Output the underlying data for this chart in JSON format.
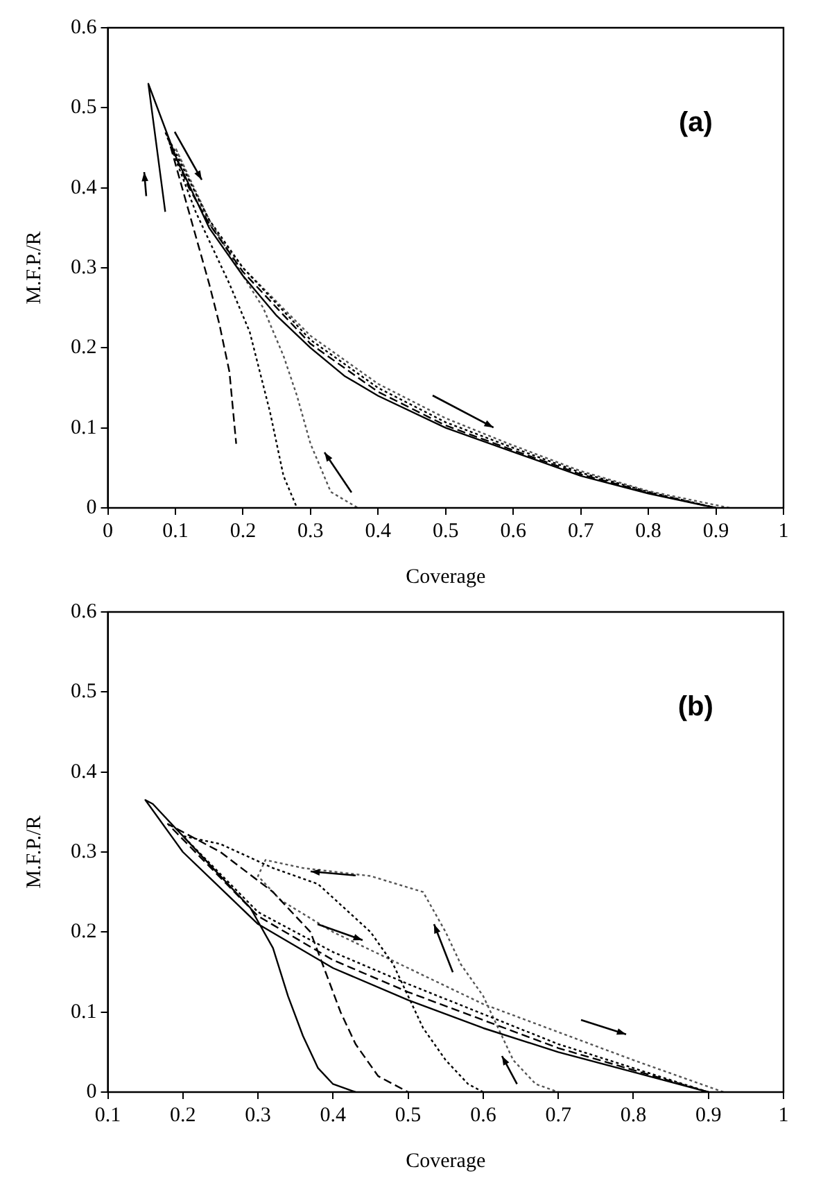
{
  "chart_data": [
    {
      "type": "line",
      "xlabel": "Coverage",
      "ylabel": "M.F.P./R",
      "annotations": [
        "(a)"
      ],
      "xlim": [
        0,
        1
      ],
      "ylim": [
        0,
        0.6
      ],
      "xticks": [
        0,
        0.1,
        0.2,
        0.3,
        0.4,
        0.5,
        0.6,
        0.7,
        0.8,
        0.9,
        1
      ],
      "yticks": [
        0,
        0.1,
        0.2,
        0.3,
        0.4,
        0.5,
        0.6
      ],
      "grid": false,
      "legend": false,
      "marker": "none",
      "series": [
        {
          "color": "#000000",
          "line_style": "solid",
          "x": [
            0.085,
            0.06,
            0.1,
            0.15,
            0.2,
            0.25,
            0.3,
            0.35,
            0.4,
            0.5,
            0.6,
            0.7,
            0.8,
            0.9
          ],
          "values": [
            0.37,
            0.53,
            0.44,
            0.35,
            0.29,
            0.24,
            0.2,
            0.165,
            0.14,
            0.1,
            0.07,
            0.04,
            0.018,
            0
          ]
        },
        {
          "color": "#000000",
          "line_style": "dashed",
          "x": [
            0.9,
            0.8,
            0.7,
            0.6,
            0.5,
            0.4,
            0.3,
            0.2,
            0.15,
            0.12,
            0.09,
            0.12,
            0.15,
            0.165,
            0.18,
            0.19
          ],
          "values": [
            0,
            0.019,
            0.042,
            0.072,
            0.103,
            0.145,
            0.205,
            0.295,
            0.355,
            0.4,
            0.46,
            0.37,
            0.28,
            0.23,
            0.17,
            0.08
          ]
        },
        {
          "color": "#000000",
          "line_style": "dotted",
          "x": [
            0.9,
            0.8,
            0.7,
            0.6,
            0.5,
            0.4,
            0.3,
            0.2,
            0.15,
            0.12,
            0.085,
            0.13,
            0.18,
            0.21,
            0.24,
            0.26,
            0.28
          ],
          "values": [
            0,
            0.02,
            0.044,
            0.075,
            0.107,
            0.15,
            0.21,
            0.3,
            0.36,
            0.41,
            0.47,
            0.37,
            0.28,
            0.22,
            0.12,
            0.04,
            0
          ]
        },
        {
          "color": "#555555",
          "line_style": "dotted",
          "x": [
            0.92,
            0.8,
            0.7,
            0.6,
            0.5,
            0.4,
            0.3,
            0.2,
            0.15,
            0.1,
            0.15,
            0.2,
            0.23,
            0.26,
            0.28,
            0.3,
            0.33,
            0.37
          ],
          "values": [
            0,
            0.021,
            0.046,
            0.078,
            0.112,
            0.155,
            0.215,
            0.3,
            0.355,
            0.45,
            0.36,
            0.29,
            0.25,
            0.19,
            0.14,
            0.08,
            0.02,
            0
          ]
        }
      ]
    },
    {
      "type": "line",
      "xlabel": "Coverage",
      "ylabel": "M.F.P./R",
      "annotations": [
        "(b)"
      ],
      "xlim": [
        0.1,
        1
      ],
      "ylim": [
        0,
        0.6
      ],
      "xticks": [
        0.1,
        0.2,
        0.3,
        0.4,
        0.5,
        0.6,
        0.7,
        0.8,
        0.9,
        1
      ],
      "yticks": [
        0,
        0.1,
        0.2,
        0.3,
        0.4,
        0.5,
        0.6
      ],
      "grid": false,
      "legend": false,
      "marker": "none",
      "series": [
        {
          "color": "#000000",
          "line_style": "solid",
          "x": [
            0.9,
            0.8,
            0.7,
            0.6,
            0.5,
            0.4,
            0.3,
            0.2,
            0.15,
            0.16,
            0.2,
            0.25,
            0.29,
            0.32,
            0.34,
            0.36,
            0.38,
            0.4,
            0.43
          ],
          "values": [
            0,
            0.025,
            0.05,
            0.08,
            0.115,
            0.155,
            0.21,
            0.3,
            0.365,
            0.36,
            0.32,
            0.27,
            0.23,
            0.18,
            0.12,
            0.07,
            0.03,
            0.01,
            0
          ]
        },
        {
          "color": "#000000",
          "line_style": "dashed",
          "x": [
            0.9,
            0.7,
            0.5,
            0.4,
            0.3,
            0.18,
            0.25,
            0.32,
            0.37,
            0.39,
            0.41,
            0.43,
            0.46,
            0.5
          ],
          "values": [
            0,
            0.055,
            0.125,
            0.165,
            0.22,
            0.335,
            0.3,
            0.25,
            0.2,
            0.15,
            0.1,
            0.06,
            0.02,
            0
          ]
        },
        {
          "color": "#000000",
          "line_style": "dotted",
          "x": [
            0.9,
            0.7,
            0.5,
            0.4,
            0.3,
            0.2,
            0.25,
            0.32,
            0.38,
            0.45,
            0.48,
            0.5,
            0.52,
            0.55,
            0.58,
            0.6
          ],
          "values": [
            0,
            0.06,
            0.135,
            0.175,
            0.225,
            0.32,
            0.31,
            0.28,
            0.26,
            0.2,
            0.16,
            0.12,
            0.08,
            0.04,
            0.01,
            0
          ]
        },
        {
          "color": "#555555",
          "line_style": "dotted",
          "x": [
            0.92,
            0.8,
            0.7,
            0.6,
            0.5,
            0.4,
            0.33,
            0.3,
            0.31,
            0.36,
            0.45,
            0.52,
            0.55,
            0.57,
            0.6,
            0.62,
            0.64,
            0.67,
            0.7
          ],
          "values": [
            0,
            0.04,
            0.075,
            0.11,
            0.155,
            0.2,
            0.24,
            0.27,
            0.29,
            0.28,
            0.27,
            0.25,
            0.2,
            0.16,
            0.12,
            0.08,
            0.04,
            0.01,
            0
          ]
        }
      ]
    }
  ]
}
